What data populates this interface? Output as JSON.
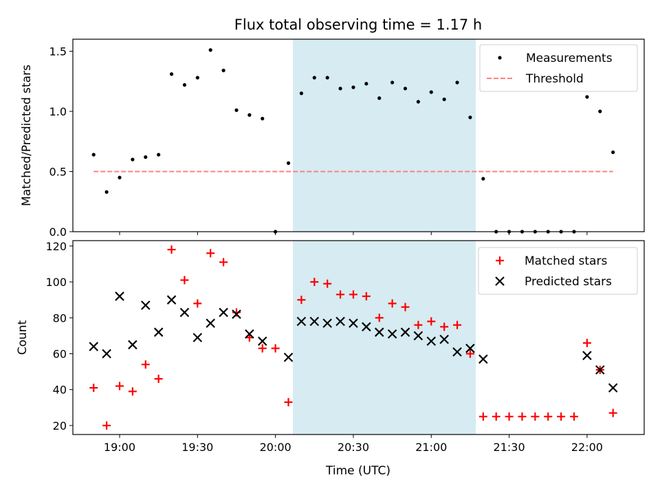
{
  "title": "Flux total observing time = 1.17 h",
  "xlabel": "Time (UTC)",
  "x_tick_labels": [
    "19:00",
    "19:30",
    "20:00",
    "20:30",
    "21:00",
    "21:30",
    "22:00"
  ],
  "shade_color": "#add8e6",
  "chart_data": [
    {
      "type": "scatter",
      "ylabel": "Matched/Predicted stars",
      "xlim": [
        "18:42",
        "22:22"
      ],
      "ylim": [
        0,
        1.6
      ],
      "yticks": [
        0.0,
        0.5,
        1.0,
        1.5
      ],
      "y_tick_labels": [
        "0.0",
        "0.5",
        "1.0",
        "1.5"
      ],
      "legend": {
        "placement": "upper right",
        "entries": [
          "Measurements",
          "Threshold"
        ]
      },
      "shaded_interval": [
        "20:05",
        "21:15"
      ],
      "series": [
        {
          "name": "Measurements",
          "marker": "dot",
          "color": "#000000",
          "x": [
            "18:50",
            "18:55",
            "19:00",
            "19:05",
            "19:10",
            "19:15",
            "19:20",
            "19:25",
            "19:30",
            "19:35",
            "19:40",
            "19:45",
            "19:50",
            "19:55",
            "20:00",
            "20:05",
            "20:10",
            "20:15",
            "20:20",
            "20:25",
            "20:30",
            "20:35",
            "20:40",
            "20:45",
            "20:50",
            "20:55",
            "21:00",
            "21:05",
            "21:10",
            "21:15",
            "21:20",
            "21:25",
            "21:30",
            "21:35",
            "21:40",
            "21:45",
            "21:50",
            "21:55",
            "22:00",
            "22:05",
            "22:10"
          ],
          "y": [
            0.64,
            0.33,
            0.45,
            0.6,
            0.62,
            0.64,
            1.31,
            1.22,
            1.28,
            1.51,
            1.34,
            1.01,
            0.97,
            0.94,
            0.0,
            0.57,
            1.15,
            1.28,
            1.28,
            1.19,
            1.2,
            1.23,
            1.11,
            1.24,
            1.19,
            1.08,
            1.16,
            1.1,
            1.24,
            0.95,
            0.44,
            0.0,
            0.0,
            0.0,
            0.0,
            0.0,
            0.0,
            0.0,
            1.12,
            1.0,
            0.66
          ]
        },
        {
          "name": "Threshold",
          "marker": "dashed-line",
          "color": "#ff8080",
          "x": [
            "18:50",
            "22:10"
          ],
          "y": [
            0.5,
            0.5
          ]
        }
      ]
    },
    {
      "type": "scatter",
      "ylabel": "Count",
      "xlim": [
        "18:42",
        "22:22"
      ],
      "ylim": [
        15,
        123
      ],
      "yticks": [
        20,
        40,
        60,
        80,
        100,
        120
      ],
      "y_tick_labels": [
        "20",
        "40",
        "60",
        "80",
        "100",
        "120"
      ],
      "legend": {
        "placement": "upper right",
        "entries": [
          "Matched stars",
          "Predicted stars"
        ]
      },
      "shaded_interval": [
        "20:05",
        "21:15"
      ],
      "series": [
        {
          "name": "Matched stars",
          "marker": "plus",
          "color": "#ff0000",
          "x": [
            "18:50",
            "18:55",
            "19:00",
            "19:05",
            "19:10",
            "19:15",
            "19:20",
            "19:25",
            "19:30",
            "19:35",
            "19:40",
            "19:45",
            "19:50",
            "19:55",
            "20:00",
            "20:05",
            "20:10",
            "20:15",
            "20:20",
            "20:25",
            "20:30",
            "20:35",
            "20:40",
            "20:45",
            "20:50",
            "20:55",
            "21:00",
            "21:05",
            "21:10",
            "21:15",
            "21:20",
            "21:25",
            "21:30",
            "21:35",
            "21:40",
            "21:45",
            "21:50",
            "21:55",
            "22:00",
            "22:05",
            "22:10"
          ],
          "y": [
            41,
            20,
            42,
            39,
            54,
            46,
            118,
            101,
            88,
            116,
            111,
            83,
            69,
            63,
            63,
            33,
            90,
            100,
            99,
            93,
            93,
            92,
            80,
            88,
            86,
            76,
            78,
            75,
            76,
            60,
            25,
            25,
            25,
            25,
            25,
            25,
            25,
            25,
            66,
            51,
            27
          ]
        },
        {
          "name": "Predicted stars",
          "marker": "x",
          "color": "#000000",
          "x": [
            "18:50",
            "18:55",
            "19:00",
            "19:05",
            "19:10",
            "19:15",
            "19:20",
            "19:25",
            "19:30",
            "19:35",
            "19:40",
            "19:45",
            "19:50",
            "19:55",
            "20:05",
            "20:10",
            "20:15",
            "20:20",
            "20:25",
            "20:30",
            "20:35",
            "20:40",
            "20:45",
            "20:50",
            "20:55",
            "21:00",
            "21:05",
            "21:10",
            "21:15",
            "21:20",
            "22:00",
            "22:05",
            "22:10"
          ],
          "y": [
            64,
            60,
            92,
            65,
            87,
            72,
            90,
            83,
            69,
            77,
            83,
            82,
            71,
            67,
            58,
            78,
            78,
            77,
            78,
            77,
            75,
            72,
            71,
            72,
            70,
            67,
            68,
            61,
            63,
            57,
            59,
            51,
            41
          ]
        }
      ]
    }
  ]
}
